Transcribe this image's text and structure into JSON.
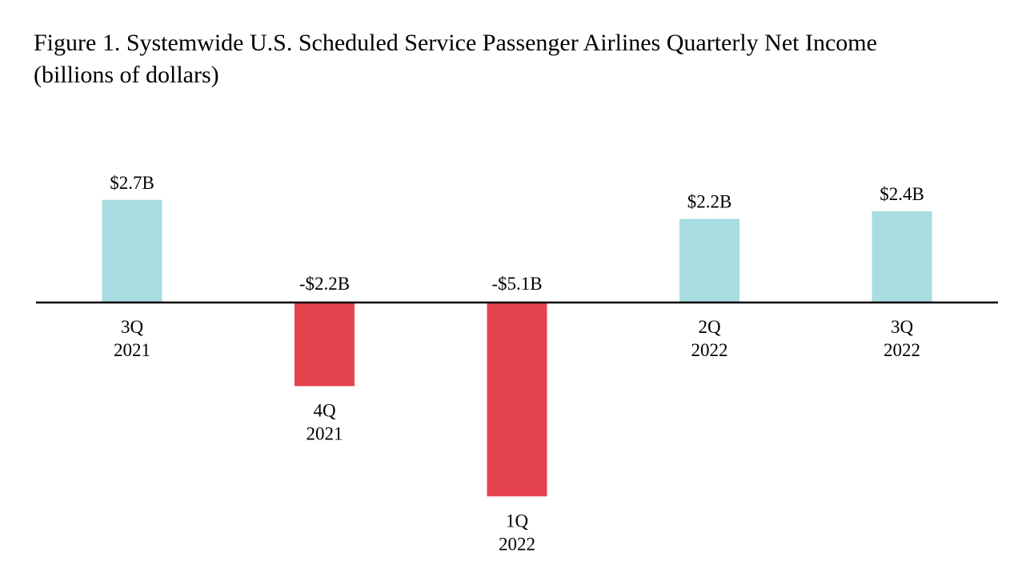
{
  "title_line1": "Figure 1. Systemwide U.S. Scheduled Service Passenger Airlines Quarterly Net Income",
  "title_line2": "(billions of dollars)",
  "chart_data": {
    "type": "bar",
    "categories": [
      [
        "3Q",
        "2021"
      ],
      [
        "4Q",
        "2021"
      ],
      [
        "1Q",
        "2022"
      ],
      [
        "2Q",
        "2022"
      ],
      [
        "3Q",
        "2022"
      ]
    ],
    "values": [
      2.7,
      -2.2,
      -5.1,
      2.2,
      2.4
    ],
    "data_labels": [
      "$2.7B",
      "-$2.2B",
      "-$5.1B",
      "$2.2B",
      "$2.4B"
    ],
    "title": "Figure 1. Systemwide U.S. Scheduled Service Passenger Airlines Quarterly Net Income (billions of dollars)",
    "xlabel": "",
    "ylabel": "",
    "grid": false,
    "colors": {
      "positive": "#a8dde1",
      "negative": "#e5444f",
      "axis": "#000000"
    }
  }
}
